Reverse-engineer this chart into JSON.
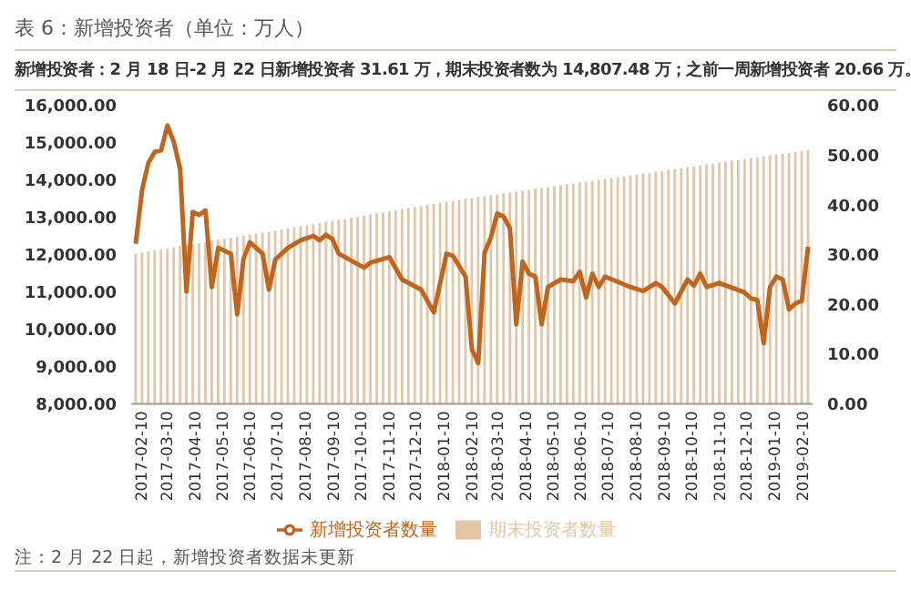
{
  "chart_data": {
    "type": "bar",
    "title": "表 6：新增投资者（单位：万人）",
    "subtitle": "新增投资者：2 月 18 日-2 月 22 日新增投资者 31.61 万，期末投资者数为 14,807.48 万；之前一周新增投资者 20.66 万。",
    "annotations": [
      "注：2 月 22 日起，新增投资者数据未更新"
    ],
    "x": [
      "2017-02-10",
      "2017-02-17",
      "2017-02-24",
      "2017-03-03",
      "2017-03-10",
      "2017-03-17",
      "2017-03-24",
      "2017-03-31",
      "2017-04-07",
      "2017-04-14",
      "2017-04-21",
      "2017-04-28",
      "2017-05-05",
      "2017-05-12",
      "2017-05-19",
      "2017-05-26",
      "2017-06-02",
      "2017-06-09",
      "2017-06-16",
      "2017-06-23",
      "2017-06-30",
      "2017-07-07",
      "2017-07-14",
      "2017-07-21",
      "2017-07-28",
      "2017-08-04",
      "2017-08-11",
      "2017-08-18",
      "2017-08-25",
      "2017-09-01",
      "2017-09-08",
      "2017-09-15",
      "2017-09-22",
      "2017-09-29",
      "2017-10-06",
      "2017-10-13",
      "2017-10-20",
      "2017-10-27",
      "2017-11-03",
      "2017-11-10",
      "2017-11-17",
      "2017-11-24",
      "2017-12-01",
      "2017-12-08",
      "2017-12-15",
      "2017-12-22",
      "2017-12-29",
      "2018-01-05",
      "2018-01-12",
      "2018-01-19",
      "2018-01-26",
      "2018-02-02",
      "2018-02-09",
      "2018-02-16",
      "2018-02-23",
      "2018-03-02",
      "2018-03-09",
      "2018-03-16",
      "2018-03-23",
      "2018-03-30",
      "2018-04-06",
      "2018-04-13",
      "2018-04-20",
      "2018-04-27",
      "2018-05-04",
      "2018-05-11",
      "2018-05-18",
      "2018-05-25",
      "2018-06-01",
      "2018-06-08",
      "2018-06-15",
      "2018-06-22",
      "2018-06-29",
      "2018-07-06",
      "2018-07-13",
      "2018-07-20",
      "2018-07-27",
      "2018-08-03",
      "2018-08-10",
      "2018-08-17",
      "2018-08-24",
      "2018-08-31",
      "2018-09-07",
      "2018-09-14",
      "2018-09-21",
      "2018-09-28",
      "2018-10-05",
      "2018-10-12",
      "2018-10-19",
      "2018-10-26",
      "2018-11-02",
      "2018-11-09",
      "2018-11-16",
      "2018-11-23",
      "2018-11-30",
      "2018-12-07",
      "2018-12-14",
      "2018-12-21",
      "2018-12-28",
      "2019-01-04",
      "2019-01-11",
      "2019-01-18",
      "2019-01-25",
      "2019-02-01",
      "2019-02-08",
      "2019-02-15",
      "2019-02-22"
    ],
    "series": [
      {
        "name": "期末投资者数量",
        "color": "#e2c6a6",
        "values": [
          12030,
          12060,
          12090,
          12120,
          12140,
          12170,
          12200,
          12230,
          12260,
          12280,
          12310,
          12340,
          12370,
          12400,
          12430,
          12450,
          12480,
          12510,
          12540,
          12570,
          12600,
          12620,
          12650,
          12680,
          12710,
          12740,
          12770,
          12790,
          12820,
          12850,
          12880,
          12910,
          12940,
          12960,
          12990,
          13020,
          13050,
          13080,
          13110,
          13130,
          13160,
          13190,
          13220,
          13250,
          13280,
          13300,
          13330,
          13360,
          13390,
          13420,
          13450,
          13470,
          13500,
          13520,
          13550,
          13570,
          13600,
          13620,
          13650,
          13670,
          13690,
          13720,
          13740,
          13770,
          13790,
          13810,
          13840,
          13860,
          13890,
          13910,
          13940,
          13960,
          13980,
          14010,
          14030,
          14060,
          14080,
          14100,
          14130,
          14150,
          14180,
          14200,
          14230,
          14250,
          14270,
          14300,
          14320,
          14350,
          14370,
          14390,
          14420,
          14440,
          14470,
          14490,
          14520,
          14540,
          14570,
          14590,
          14610,
          14640,
          14660,
          14690,
          14710,
          14730,
          14760,
          14780,
          14807.48
        ]
      },
      {
        "name": "新增投资者数量",
        "type": "line",
        "axis": "y2",
        "color": "#c0651e",
        "x": [
          "2017-02-10",
          "2017-02-17",
          "2017-02-24",
          "2017-03-03",
          "2017-03-10",
          "2017-03-17",
          "2017-03-24",
          "2017-03-31",
          "2017-04-07",
          "2017-04-14",
          "2017-04-21",
          "2017-04-28",
          "2017-05-05",
          "2017-05-12",
          "2017-05-26",
          "2017-06-02",
          "2017-06-09",
          "2017-06-16",
          "2017-06-30",
          "2017-07-07",
          "2017-07-14",
          "2017-07-28",
          "2017-08-11",
          "2017-08-25",
          "2017-09-01",
          "2017-09-08",
          "2017-09-15",
          "2017-09-22",
          "2017-10-20",
          "2017-10-27",
          "2017-11-17",
          "2017-12-01",
          "2017-12-22",
          "2018-01-05",
          "2018-01-19",
          "2018-01-26",
          "2018-02-09",
          "2018-02-16",
          "2018-02-23",
          "2018-03-02",
          "2018-03-09",
          "2018-03-16",
          "2018-03-23",
          "2018-03-30",
          "2018-04-06",
          "2018-04-13",
          "2018-04-20",
          "2018-04-27",
          "2018-05-04",
          "2018-05-11",
          "2018-05-25",
          "2018-06-08",
          "2018-06-15",
          "2018-06-22",
          "2018-06-29",
          "2018-07-06",
          "2018-07-13",
          "2018-08-10",
          "2018-08-24",
          "2018-09-07",
          "2018-09-14",
          "2018-09-28",
          "2018-10-12",
          "2018-10-19",
          "2018-10-26",
          "2018-11-02",
          "2018-11-16",
          "2018-12-14",
          "2018-12-21",
          "2018-12-28",
          "2019-01-04",
          "2019-01-11",
          "2019-01-18",
          "2019-01-25",
          "2019-02-01",
          "2019-02-08",
          "2019-02-15",
          "2019-02-22"
        ],
        "values": [
          32.2,
          43,
          48.5,
          50.7,
          51,
          56,
          52.7,
          47.3,
          22.6,
          38.6,
          38,
          38.9,
          23.5,
          31.4,
          30.2,
          18,
          29.2,
          32.5,
          30.2,
          23,
          29,
          31.4,
          32.9,
          33.8,
          32.9,
          34,
          33.2,
          30.2,
          27.4,
          28.4,
          29.5,
          25,
          23,
          18.4,
          30.2,
          29.8,
          25.6,
          11,
          8.2,
          30.4,
          33.5,
          38.3,
          37.7,
          35.3,
          16,
          28.6,
          26.2,
          25.6,
          16,
          23.5,
          25,
          24.7,
          26.6,
          21.4,
          26.2,
          23.5,
          25.6,
          23.5,
          22.7,
          24.3,
          23.5,
          20.2,
          25,
          23.8,
          26.2,
          23.5,
          24.3,
          22.4,
          21.2,
          20.9,
          12.2,
          23.5,
          25.6,
          25,
          19,
          20.2,
          20.66,
          31.61
        ]
      }
    ],
    "xlim": [
      "2017-02-05",
      "2019-02-27"
    ],
    "xticks": [
      "2017-02-10",
      "2017-03-10",
      "2017-04-10",
      "2017-05-10",
      "2017-06-10",
      "2017-07-10",
      "2017-08-10",
      "2017-09-10",
      "2017-10-10",
      "2017-11-10",
      "2017-12-10",
      "2018-01-10",
      "2018-02-10",
      "2018-03-10",
      "2018-04-10",
      "2018-05-10",
      "2018-06-10",
      "2018-07-10",
      "2018-08-10",
      "2018-09-10",
      "2018-10-10",
      "2018-11-10",
      "2018-12-10",
      "2019-01-10",
      "2019-02-10"
    ],
    "ylim": [
      8000,
      16000
    ],
    "yticks": [
      {
        "value": 8000,
        "label": "8,000.00"
      },
      {
        "value": 9000,
        "label": "9,000.00"
      },
      {
        "value": 10000,
        "label": "10,000.00"
      },
      {
        "value": 11000,
        "label": "11,000.00"
      },
      {
        "value": 12000,
        "label": "12,000.00"
      },
      {
        "value": 13000,
        "label": "13,000.00"
      },
      {
        "value": 14000,
        "label": "14,000.00"
      },
      {
        "value": 15000,
        "label": "15,000.00"
      },
      {
        "value": 16000,
        "label": "16,000.00"
      }
    ],
    "y2lim": [
      0,
      60
    ],
    "y2ticks": [
      {
        "value": 0,
        "label": "0.00"
      },
      {
        "value": 10,
        "label": "10.00"
      },
      {
        "value": 20,
        "label": "20.00"
      },
      {
        "value": 30,
        "label": "30.00"
      },
      {
        "value": 40,
        "label": "40.00"
      },
      {
        "value": 50,
        "label": "50.00"
      },
      {
        "value": 60,
        "label": "60.00"
      }
    ],
    "legend": "bottom",
    "grid": false,
    "marker": "none",
    "line_style": "solid"
  }
}
